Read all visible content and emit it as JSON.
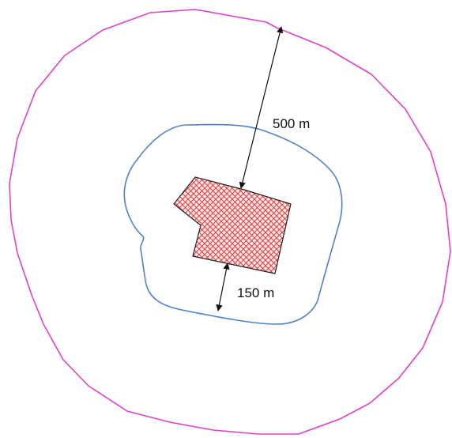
{
  "labels": {
    "outer_distance": "500 m",
    "inner_distance": "150 m"
  },
  "colors": {
    "outer_buffer": "#e040c8",
    "inner_buffer": "#4f81c9",
    "site_outline": "#222222",
    "site_hatch": "#e23b3b",
    "site_fill": "#fbe9e9",
    "dimension_arrow": "#111111"
  }
}
